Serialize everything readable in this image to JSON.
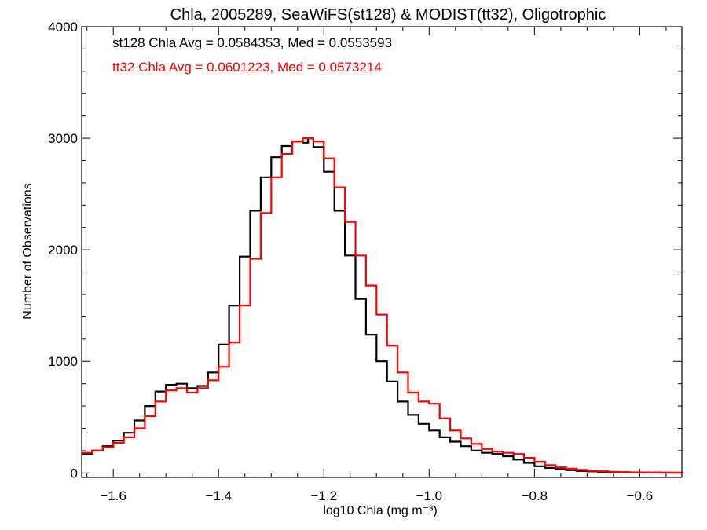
{
  "chart_data": {
    "type": "line",
    "step": true,
    "title": "Chla, 2005289, SeaWiFS(st128) & MODIST(tt32), Oligotrophic",
    "xlabel": "log10 Chla (mg m⁻³)",
    "ylabel": "Number of Observations",
    "xlim": [
      -1.66,
      -0.52
    ],
    "ylim": [
      -40,
      4000
    ],
    "xticks": [
      -1.6,
      -1.4,
      -1.2,
      -1.0,
      -0.8,
      -0.6
    ],
    "xtick_labels": [
      "−1.6",
      "−1.4",
      "−1.2",
      "−1.0",
      "−0.8",
      "−0.6"
    ],
    "yticks": [
      0,
      1000,
      2000,
      3000,
      4000
    ],
    "ytick_labels": [
      "0",
      "1000",
      "2000",
      "3000",
      "4000"
    ],
    "grid": false,
    "annotations": [
      {
        "text": "st128 Chla Avg = 0.0584353, Med = 0.0553593",
        "color": "#000000"
      },
      {
        "text": "tt32 Chla Avg = 0.0601223, Med = 0.0573214",
        "color": "#ff0000"
      }
    ],
    "series": [
      {
        "color": "#000000",
        "x": [
          -1.66,
          -1.64,
          -1.62,
          -1.6,
          -1.58,
          -1.56,
          -1.54,
          -1.52,
          -1.5,
          -1.48,
          -1.46,
          -1.44,
          -1.42,
          -1.4,
          -1.38,
          -1.36,
          -1.34,
          -1.32,
          -1.3,
          -1.28,
          -1.26,
          -1.24,
          -1.23,
          -1.22,
          -1.2,
          -1.18,
          -1.16,
          -1.14,
          -1.12,
          -1.1,
          -1.08,
          -1.06,
          -1.04,
          -1.02,
          -1.0,
          -0.98,
          -0.96,
          -0.94,
          -0.92,
          -0.9,
          -0.88,
          -0.86,
          -0.84,
          -0.82,
          -0.8,
          -0.78,
          -0.76,
          -0.74,
          -0.72,
          -0.7,
          -0.68,
          -0.66,
          -0.64,
          -0.62,
          -0.6,
          -0.58,
          -0.56,
          -0.54,
          -0.52
        ],
        "y": [
          170,
          200,
          240,
          290,
          360,
          470,
          600,
          730,
          790,
          800,
          760,
          780,
          900,
          1150,
          1500,
          1940,
          2350,
          2650,
          2830,
          2930,
          2970,
          2960,
          3000,
          2920,
          2700,
          2350,
          1950,
          1560,
          1240,
          1000,
          820,
          640,
          520,
          440,
          380,
          320,
          280,
          240,
          200,
          180,
          170,
          150,
          120,
          90,
          60,
          45,
          35,
          25,
          18,
          14,
          10,
          8,
          6,
          5,
          4,
          3,
          2,
          2,
          1
        ]
      },
      {
        "color": "#ff0000",
        "x": [
          -1.66,
          -1.64,
          -1.62,
          -1.6,
          -1.58,
          -1.56,
          -1.54,
          -1.52,
          -1.5,
          -1.48,
          -1.46,
          -1.44,
          -1.42,
          -1.4,
          -1.38,
          -1.36,
          -1.34,
          -1.32,
          -1.3,
          -1.28,
          -1.26,
          -1.24,
          -1.22,
          -1.2,
          -1.18,
          -1.16,
          -1.14,
          -1.12,
          -1.1,
          -1.08,
          -1.06,
          -1.04,
          -1.02,
          -1.0,
          -0.98,
          -0.96,
          -0.94,
          -0.92,
          -0.9,
          -0.88,
          -0.86,
          -0.84,
          -0.82,
          -0.8,
          -0.78,
          -0.76,
          -0.74,
          -0.72,
          -0.7,
          -0.68,
          -0.66,
          -0.64,
          -0.62,
          -0.6,
          -0.58,
          -0.56,
          -0.54,
          -0.52
        ],
        "y": [
          180,
          200,
          230,
          270,
          320,
          400,
          510,
          640,
          740,
          760,
          720,
          760,
          830,
          950,
          1170,
          1500,
          1920,
          2330,
          2650,
          2860,
          2970,
          3000,
          2970,
          2820,
          2560,
          2250,
          1950,
          1680,
          1420,
          1140,
          900,
          720,
          640,
          620,
          490,
          380,
          310,
          260,
          215,
          190,
          180,
          170,
          135,
          100,
          70,
          50,
          38,
          28,
          20,
          15,
          11,
          8,
          6,
          5,
          4,
          3,
          2,
          1
        ]
      }
    ]
  }
}
